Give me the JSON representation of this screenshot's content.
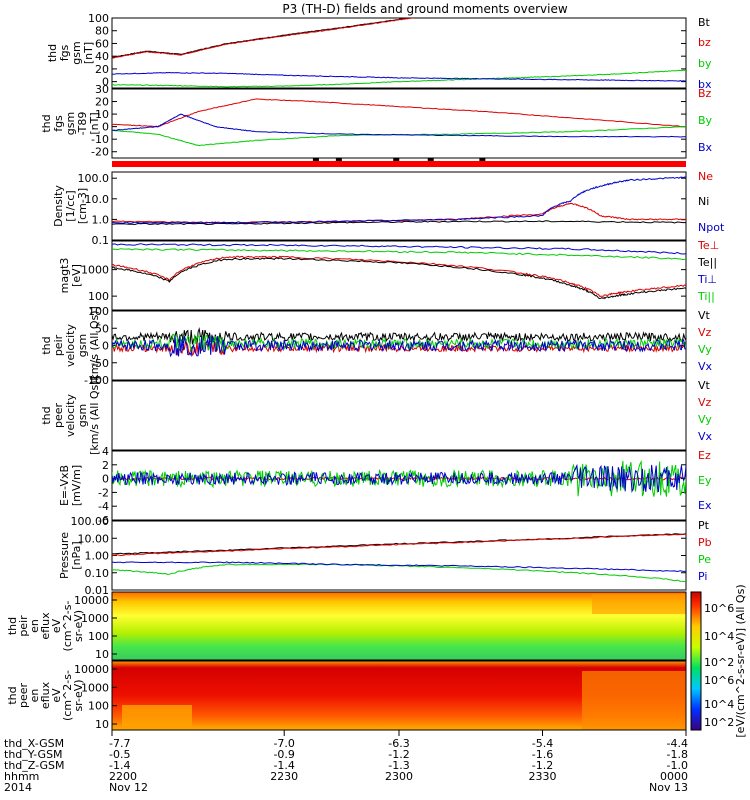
{
  "chart_data": {
    "type": "line",
    "title": "P3 (TH-D) fields and ground moments overview",
    "panels": [
      {
        "ylabel": [
          "thd",
          "fgs",
          "gsm",
          "[nT]"
        ],
        "ylim": [
          -10,
          100
        ],
        "ticks": [
          "100",
          "80",
          "60",
          "40",
          "20",
          "0"
        ],
        "series": [
          {
            "name": "Bt",
            "color": "#000000",
            "x": [
              0,
              0.06,
              0.12,
              0.2,
              0.3,
              0.4,
              0.5,
              0.55
            ],
            "y": [
              38,
              48,
              43,
              60,
              73,
              85,
              98,
              105
            ]
          },
          {
            "name": "bz",
            "color": "#dd0000",
            "x": [
              0,
              0.06,
              0.12,
              0.2,
              0.3,
              0.4,
              0.5,
              0.55
            ],
            "y": [
              37,
              47,
              42,
              59,
              72,
              84,
              97,
              104
            ]
          },
          {
            "name": "by",
            "color": "#00cc00",
            "x": [
              0,
              0.1,
              0.2,
              0.3,
              0.4,
              0.5,
              0.6,
              0.7,
              0.8,
              0.9,
              1.0
            ],
            "y": [
              -5,
              -6,
              -8,
              -7,
              -4,
              0,
              3,
              6,
              9,
              13,
              18
            ]
          },
          {
            "name": "bx",
            "color": "#0000cc",
            "x": [
              0,
              0.1,
              0.2,
              0.3,
              0.4,
              0.5,
              0.6,
              0.7,
              0.8,
              0.9,
              1.0
            ],
            "y": [
              12,
              14,
              13,
              10,
              8,
              6,
              5,
              4,
              3,
              2,
              1
            ]
          }
        ]
      },
      {
        "ylabel": [
          "thd",
          "fgs",
          "gsm",
          "-T89",
          "[nT]"
        ],
        "ylim": [
          -25,
          30
        ],
        "ticks": [
          "30",
          "20",
          "10",
          "0",
          "-10",
          "-20"
        ],
        "series": [
          {
            "name": "Bz",
            "color": "#dd0000",
            "x": [
              0,
              0.08,
              0.15,
              0.25,
              0.35,
              0.5,
              0.65,
              0.8,
              1.0
            ],
            "y": [
              2,
              0,
              12,
              22,
              20,
              16,
              12,
              7,
              0
            ]
          },
          {
            "name": "By",
            "color": "#00cc00",
            "x": [
              0,
              0.08,
              0.15,
              0.25,
              0.4,
              0.6,
              0.8,
              1.0
            ],
            "y": [
              -3,
              -6,
              -15,
              -11,
              -7,
              -6,
              -4,
              0
            ]
          },
          {
            "name": "Bx",
            "color": "#0000cc",
            "x": [
              0,
              0.08,
              0.12,
              0.18,
              0.25,
              0.4,
              0.6,
              0.8,
              1.0
            ],
            "y": [
              -3,
              0,
              10,
              0,
              -4,
              -6,
              -7,
              -8,
              -8
            ]
          }
        ]
      },
      {
        "ylabel": [
          "Density",
          "[1/cc]",
          "[cm-3]"
        ],
        "scale": "log",
        "ylim": [
          0.1,
          200
        ],
        "ticks": [
          "100.0",
          "10.0",
          "1.0",
          "0.1"
        ],
        "series": [
          {
            "name": "Ne",
            "color": "#dd0000",
            "x": [
              0,
              0.2,
              0.4,
              0.6,
              0.75,
              0.8,
              0.85,
              0.9,
              1.0
            ],
            "y": [
              0.8,
              0.7,
              0.8,
              1.0,
              1.8,
              6.0,
              1.5,
              1.0,
              1.0
            ]
          },
          {
            "name": "Ni",
            "color": "#000000",
            "x": [
              0,
              0.2,
              0.4,
              0.6,
              0.8,
              1.0
            ],
            "y": [
              0.6,
              0.6,
              0.7,
              0.8,
              0.8,
              0.7
            ]
          },
          {
            "name": "Npot",
            "color": "#0000cc",
            "x": [
              0,
              0.2,
              0.4,
              0.6,
              0.75,
              0.8,
              0.85,
              0.9,
              1.0
            ],
            "y": [
              0.7,
              0.7,
              0.8,
              1.0,
              1.5,
              8.0,
              40,
              80,
              110
            ]
          }
        ]
      },
      {
        "ylabel": [
          "magt3",
          "[eV]"
        ],
        "scale": "log",
        "ylim": [
          30,
          12000
        ],
        "ticks": [
          "1000",
          "100"
        ],
        "series": [
          {
            "name": "Te⊥",
            "color": "#dd0000",
            "x": [
              0,
              0.1,
              0.2,
              0.3,
              0.5,
              0.7,
              0.8,
              0.85,
              0.9,
              1.0
            ],
            "y": [
              1500,
              400,
              3000,
              3000,
              2000,
              800,
              300,
              100,
              150,
              250
            ]
          },
          {
            "name": "Te||",
            "color": "#000000",
            "x": [
              0,
              0.1,
              0.2,
              0.3,
              0.5,
              0.7,
              0.8,
              0.85,
              0.9,
              1.0
            ],
            "y": [
              1200,
              350,
              2500,
              2600,
              1800,
              700,
              250,
              80,
              120,
              200
            ]
          },
          {
            "name": "Ti⊥",
            "color": "#0000cc",
            "x": [
              0,
              0.2,
              0.4,
              0.6,
              0.8,
              1.0
            ],
            "y": [
              9000,
              8500,
              8000,
              7000,
              6000,
              4000
            ]
          },
          {
            "name": "Ti||",
            "color": "#00cc00",
            "x": [
              0,
              0.2,
              0.4,
              0.6,
              0.8,
              1.0
            ],
            "y": [
              6000,
              5500,
              5000,
              4500,
              3500,
              2500
            ]
          }
        ]
      },
      {
        "ylabel": [
          "thd",
          "peir",
          "velocity",
          "gsm",
          "[km/s (All Qs)]"
        ],
        "ylim": [
          -100,
          100
        ],
        "ticks": [
          "100",
          "50",
          "0",
          "-50",
          "-100"
        ],
        "series": [
          {
            "name": "Vt",
            "color": "#000000"
          },
          {
            "name": "Vz",
            "color": "#dd0000"
          },
          {
            "name": "Vy",
            "color": "#00cc00"
          },
          {
            "name": "Vx",
            "color": "#0000cc"
          }
        ]
      },
      {
        "ylabel": [
          "thd",
          "peer",
          "velocity",
          "gsm",
          "[km/s (All Qs)]"
        ],
        "ylim": [
          -100,
          100
        ],
        "ticks": [],
        "series": [
          {
            "name": "Vt",
            "color": "#000000"
          },
          {
            "name": "Vz",
            "color": "#dd0000"
          },
          {
            "name": "Vy",
            "color": "#00cc00"
          },
          {
            "name": "Vx",
            "color": "#0000cc"
          }
        ]
      },
      {
        "ylabel": [
          "E=-VxB",
          "[mV/m]"
        ],
        "ylim": [
          -6,
          4
        ],
        "ticks": [
          "4",
          "2",
          "0",
          "-2",
          "-4",
          "-6"
        ],
        "series": [
          {
            "name": "Ez",
            "color": "#dd0000"
          },
          {
            "name": "Ey",
            "color": "#00cc00"
          },
          {
            "name": "Ex",
            "color": "#0000cc"
          }
        ]
      },
      {
        "ylabel": [
          "Pressure",
          "[nPa]"
        ],
        "scale": "log",
        "ylim": [
          0.01,
          100
        ],
        "ticks": [
          "100.00",
          "10.00",
          "1.00",
          "0.10",
          "0.01"
        ],
        "series": [
          {
            "name": "Pt",
            "color": "#000000",
            "x": [
              0,
              0.2,
              0.4,
              0.6,
              0.8,
              1.0
            ],
            "y": [
              1.2,
              2.0,
              3.5,
              6.0,
              10,
              18
            ]
          },
          {
            "name": "Pb",
            "color": "#dd0000",
            "x": [
              0,
              0.2,
              0.4,
              0.6,
              0.8,
              1.0
            ],
            "y": [
              1.0,
              1.8,
              3.2,
              5.5,
              9.5,
              17
            ]
          },
          {
            "name": "Pe",
            "color": "#00cc00",
            "x": [
              0,
              0.1,
              0.2,
              0.4,
              0.6,
              0.8,
              1.0
            ],
            "y": [
              0.15,
              0.08,
              0.3,
              0.3,
              0.2,
              0.1,
              0.03
            ]
          },
          {
            "name": "Pi",
            "color": "#0000cc",
            "x": [
              0,
              0.2,
              0.4,
              0.6,
              0.8,
              1.0
            ],
            "y": [
              0.4,
              0.4,
              0.3,
              0.25,
              0.18,
              0.12
            ]
          }
        ]
      }
    ],
    "spectrograms": [
      {
        "ylabel": [
          "thd",
          "peir",
          "en",
          "eflux",
          "eV",
          "(cm^2-s-",
          "sr-eV)"
        ],
        "ticks": [
          "10000",
          "1000",
          "100",
          "10"
        ]
      },
      {
        "ylabel": [
          "thd",
          "peer",
          "en",
          "eflux",
          "eV",
          "(cm^2-s-",
          "sr-eV)"
        ],
        "ticks": [
          "10000",
          "1000",
          "100",
          "10"
        ]
      }
    ],
    "colorbar": {
      "label": "[eV/(cm^2-s-sr-eV)] (All Qs)",
      "ticks": [
        "10^6",
        "10^4",
        "10^2"
      ]
    },
    "footer": {
      "rows": [
        {
          "label": "thd_X-GSM",
          "values": [
            "-7.7",
            "-7.0",
            "-6.3",
            "-5.4",
            "-4.4"
          ]
        },
        {
          "label": "thd_Y-GSM",
          "values": [
            "-0.5",
            "-0.9",
            "-1.2",
            "-1.6",
            "-1.8"
          ]
        },
        {
          "label": "thd_Z-GSM",
          "values": [
            "-1.4",
            "-1.4",
            "-1.3",
            "-1.2",
            "-1.0"
          ]
        },
        {
          "label": "hhmm",
          "values": [
            "2200",
            "2230",
            "2300",
            "2330",
            "0000"
          ]
        },
        {
          "label": "2014",
          "values": [
            "Nov 12",
            "",
            "",
            "",
            "Nov 13"
          ]
        }
      ]
    }
  }
}
